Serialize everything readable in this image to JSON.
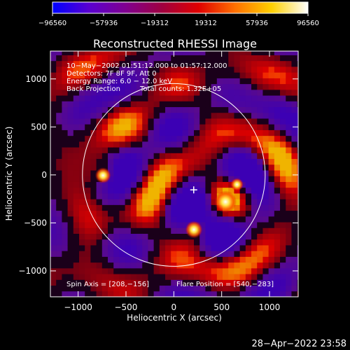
{
  "chart_data": {
    "type": "heatmap",
    "title": "Reconstructed RHESSI Image",
    "xlabel": "Heliocentric X (arcsec)",
    "ylabel": "Heliocentric Y (arcsec)",
    "xlim": [
      -1290,
      1300
    ],
    "ylim": [
      -1270,
      1290
    ],
    "xticks": [
      -1000,
      -500,
      0,
      500,
      1000
    ],
    "yticks": [
      -1000,
      -500,
      0,
      500,
      1000
    ],
    "xtick_labels": [
      "−1000",
      "−500",
      "0",
      "500",
      "1000"
    ],
    "ytick_labels": [
      "−1000",
      "−500",
      "0",
      "500",
      "1000"
    ],
    "colorbar": {
      "range": [
        -96560,
        96560
      ],
      "ticks": [
        -96560,
        -57936,
        -19312,
        19312,
        57936,
        96560
      ],
      "tick_labels": [
        "−96560",
        "−57936",
        "−19312",
        "19312",
        "57936",
        "96560"
      ],
      "colormap": [
        "#0000ff",
        "#5a00d0",
        "#800090",
        "#a00040",
        "#e00000",
        "#ff7000",
        "#ffd000",
        "#ffffff"
      ]
    },
    "info_lines": [
      "10−May−2002 01:51:12.000 to 01:57:12.000",
      "Detectors: 7F 8F 9F, Att 0",
      "Energy Range: 6.0 − 12.0 keV"
    ],
    "method": "Back Projection",
    "total_counts": "Total counts: 1.32E+05",
    "spin_axis_label": "Spin Axis = [208,−156]",
    "flare_position_label": "Flare Position = [540,−283]",
    "spin_axis": [
      208,
      -156
    ],
    "flare_position": [
      540,
      -283
    ],
    "solar_disk_radius": 955,
    "sources": [
      {
        "x": 540,
        "y": -280,
        "intensity": 96560
      },
      {
        "x": 210,
        "y": -570,
        "intensity": 62000
      },
      {
        "x": -740,
        "y": -5,
        "intensity": 52000
      },
      {
        "x": 660,
        "y": -100,
        "intensity": 32000
      }
    ]
  },
  "footer": {
    "timestamp": "28−Apr−2022 23:58"
  }
}
